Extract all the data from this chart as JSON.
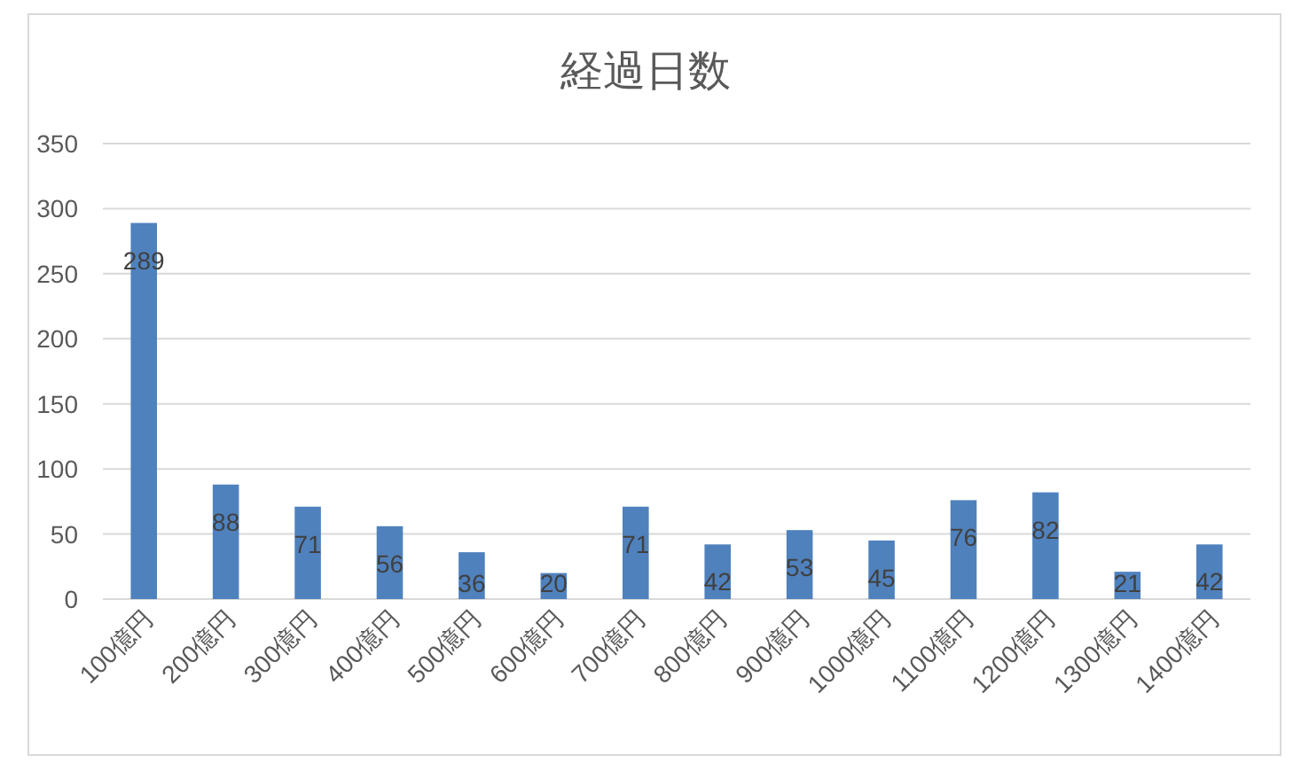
{
  "chart_data": {
    "type": "bar",
    "title": "経過日数",
    "categories": [
      "100億円",
      "200億円",
      "300億円",
      "400億円",
      "500億円",
      "600億円",
      "700億円",
      "800億円",
      "900億円",
      "1000億円",
      "1100億円",
      "1200億円",
      "1300億円",
      "1400億円"
    ],
    "values": [
      289,
      88,
      71,
      56,
      36,
      20,
      71,
      42,
      53,
      45,
      76,
      82,
      21,
      42
    ],
    "color": "#4f81bd",
    "ylim": [
      0,
      350
    ],
    "yticks": [
      0,
      50,
      100,
      150,
      200,
      250,
      300,
      350
    ],
    "grid": "y",
    "data_labels": true
  }
}
